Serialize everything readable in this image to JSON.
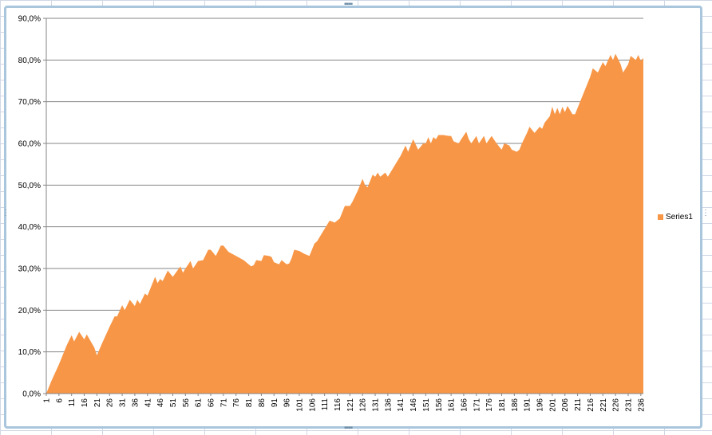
{
  "chart_data": {
    "type": "area",
    "title": "",
    "xlabel": "",
    "ylabel": "",
    "ylim": [
      0,
      0.9
    ],
    "yticks": [
      "0,0%",
      "10,0%",
      "20,0%",
      "30,0%",
      "40,0%",
      "50,0%",
      "60,0%",
      "70,0%",
      "80,0%",
      "90,0%"
    ],
    "x_tick_labels": [
      1,
      6,
      11,
      16,
      21,
      26,
      31,
      36,
      41,
      46,
      51,
      56,
      61,
      66,
      71,
      76,
      81,
      86,
      91,
      96,
      101,
      106,
      111,
      116,
      121,
      126,
      131,
      136,
      141,
      146,
      151,
      156,
      161,
      166,
      171,
      176,
      181,
      186,
      191,
      196,
      201,
      206,
      211,
      216,
      221,
      226,
      231,
      236
    ],
    "x_count": 237,
    "grid": true,
    "legend": "right",
    "series": [
      {
        "name": "Series1",
        "color": "#f79646",
        "points": [
          [
            1,
            0.0
          ],
          [
            3,
            0.03
          ],
          [
            6,
            0.07
          ],
          [
            9,
            0.115
          ],
          [
            11,
            0.14
          ],
          [
            12,
            0.125
          ],
          [
            14,
            0.148
          ],
          [
            16,
            0.13
          ],
          [
            17,
            0.142
          ],
          [
            20,
            0.11
          ],
          [
            21,
            0.092
          ],
          [
            23,
            0.12
          ],
          [
            26,
            0.16
          ],
          [
            28,
            0.185
          ],
          [
            29,
            0.185
          ],
          [
            31,
            0.212
          ],
          [
            32,
            0.2
          ],
          [
            34,
            0.225
          ],
          [
            36,
            0.21
          ],
          [
            37,
            0.225
          ],
          [
            38,
            0.215
          ],
          [
            40,
            0.24
          ],
          [
            41,
            0.235
          ],
          [
            44,
            0.28
          ],
          [
            45,
            0.265
          ],
          [
            46,
            0.275
          ],
          [
            47,
            0.27
          ],
          [
            49,
            0.295
          ],
          [
            51,
            0.28
          ],
          [
            54,
            0.305
          ],
          [
            55,
            0.29
          ],
          [
            56,
            0.3
          ],
          [
            58,
            0.318
          ],
          [
            59,
            0.3
          ],
          [
            61,
            0.318
          ],
          [
            63,
            0.32
          ],
          [
            65,
            0.345
          ],
          [
            66,
            0.345
          ],
          [
            68,
            0.33
          ],
          [
            70,
            0.355
          ],
          [
            71,
            0.355
          ],
          [
            73,
            0.34
          ],
          [
            76,
            0.33
          ],
          [
            79,
            0.32
          ],
          [
            81,
            0.31
          ],
          [
            82,
            0.305
          ],
          [
            83,
            0.308
          ],
          [
            84,
            0.32
          ],
          [
            86,
            0.318
          ],
          [
            87,
            0.332
          ],
          [
            89,
            0.33
          ],
          [
            90,
            0.328
          ],
          [
            91,
            0.315
          ],
          [
            93,
            0.31
          ],
          [
            94,
            0.32
          ],
          [
            96,
            0.31
          ],
          [
            97,
            0.312
          ],
          [
            98,
            0.325
          ],
          [
            99,
            0.345
          ],
          [
            101,
            0.342
          ],
          [
            103,
            0.335
          ],
          [
            105,
            0.33
          ],
          [
            107,
            0.36
          ],
          [
            108,
            0.365
          ],
          [
            111,
            0.395
          ],
          [
            113,
            0.415
          ],
          [
            115,
            0.41
          ],
          [
            117,
            0.42
          ],
          [
            118,
            0.435
          ],
          [
            119,
            0.45
          ],
          [
            121,
            0.45
          ],
          [
            122,
            0.46
          ],
          [
            124,
            0.485
          ],
          [
            126,
            0.515
          ],
          [
            127,
            0.5
          ],
          [
            128,
            0.495
          ],
          [
            130,
            0.525
          ],
          [
            131,
            0.52
          ],
          [
            132,
            0.53
          ],
          [
            133,
            0.52
          ],
          [
            134,
            0.525
          ],
          [
            135,
            0.53
          ],
          [
            136,
            0.52
          ],
          [
            137,
            0.53
          ],
          [
            139,
            0.55
          ],
          [
            141,
            0.57
          ],
          [
            143,
            0.595
          ],
          [
            144,
            0.58
          ],
          [
            146,
            0.61
          ],
          [
            148,
            0.585
          ],
          [
            150,
            0.6
          ],
          [
            151,
            0.6
          ],
          [
            152,
            0.615
          ],
          [
            153,
            0.6
          ],
          [
            154,
            0.615
          ],
          [
            155,
            0.61
          ],
          [
            156,
            0.62
          ],
          [
            158,
            0.62
          ],
          [
            160,
            0.618
          ],
          [
            161,
            0.618
          ],
          [
            162,
            0.605
          ],
          [
            164,
            0.6
          ],
          [
            165,
            0.61
          ],
          [
            167,
            0.628
          ],
          [
            168,
            0.61
          ],
          [
            169,
            0.6
          ],
          [
            171,
            0.618
          ],
          [
            172,
            0.6
          ],
          [
            174,
            0.618
          ],
          [
            175,
            0.6
          ],
          [
            177,
            0.618
          ],
          [
            179,
            0.6
          ],
          [
            181,
            0.585
          ],
          [
            182,
            0.6
          ],
          [
            184,
            0.595
          ],
          [
            185,
            0.585
          ],
          [
            187,
            0.58
          ],
          [
            188,
            0.585
          ],
          [
            189,
            0.6
          ],
          [
            191,
            0.625
          ],
          [
            192,
            0.64
          ],
          [
            194,
            0.625
          ],
          [
            196,
            0.64
          ],
          [
            197,
            0.635
          ],
          [
            198,
            0.65
          ],
          [
            200,
            0.665
          ],
          [
            201,
            0.688
          ],
          [
            202,
            0.67
          ],
          [
            203,
            0.685
          ],
          [
            204,
            0.67
          ],
          [
            205,
            0.688
          ],
          [
            206,
            0.675
          ],
          [
            207,
            0.69
          ],
          [
            209,
            0.67
          ],
          [
            210,
            0.67
          ],
          [
            212,
            0.7
          ],
          [
            214,
            0.73
          ],
          [
            216,
            0.76
          ],
          [
            217,
            0.78
          ],
          [
            219,
            0.77
          ],
          [
            221,
            0.795
          ],
          [
            222,
            0.785
          ],
          [
            224,
            0.812
          ],
          [
            225,
            0.8
          ],
          [
            226,
            0.815
          ],
          [
            228,
            0.79
          ],
          [
            229,
            0.77
          ],
          [
            231,
            0.79
          ],
          [
            232,
            0.81
          ],
          [
            234,
            0.8
          ],
          [
            235,
            0.812
          ],
          [
            236,
            0.798
          ],
          [
            237,
            0.805
          ]
        ]
      }
    ]
  }
}
